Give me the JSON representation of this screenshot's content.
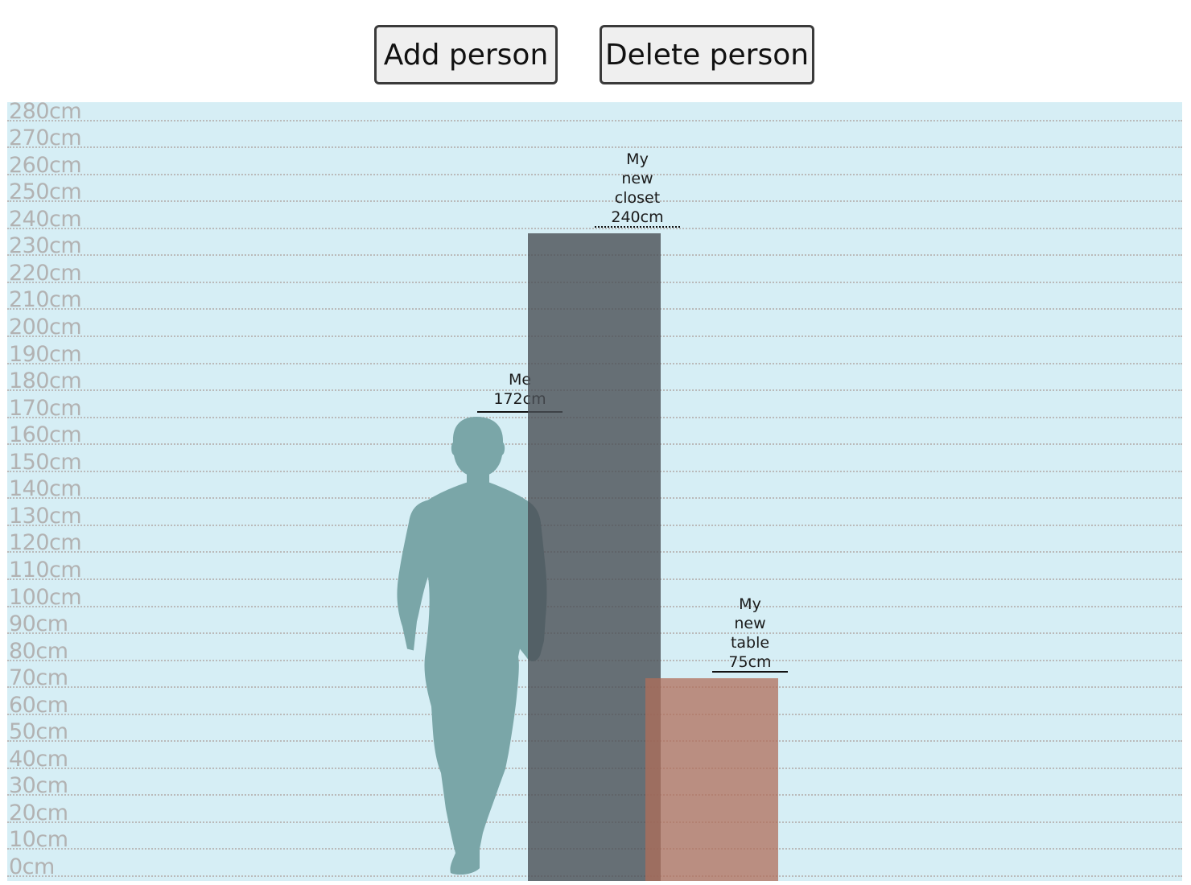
{
  "toolbar": {
    "add_label": "Add person",
    "delete_label": "Delete person"
  },
  "chart_data": {
    "type": "bar",
    "ylim": [
      0,
      280
    ],
    "unit": "cm",
    "tick_step": 10,
    "ticks": [
      "280cm",
      "270cm",
      "260cm",
      "250cm",
      "240cm",
      "230cm",
      "220cm",
      "210cm",
      "200cm",
      "190cm",
      "180cm",
      "170cm",
      "160cm",
      "150cm",
      "140cm",
      "130cm",
      "120cm",
      "110cm",
      "100cm",
      "90cm",
      "80cm",
      "70cm",
      "60cm",
      "50cm",
      "40cm",
      "30cm",
      "20cm",
      "10cm",
      "0cm"
    ],
    "grid": true,
    "background_color": "#d6eef5",
    "objects": [
      {
        "id": "me",
        "kind": "person-silhouette",
        "name": "Me",
        "value": 172,
        "value_label": "172cm",
        "color": "#7aa6a8"
      },
      {
        "id": "closet",
        "kind": "box",
        "name_lines": [
          "My",
          "new",
          "closet"
        ],
        "value": 240,
        "value_label": "240cm",
        "color": "#4a4f55"
      },
      {
        "id": "table",
        "kind": "box",
        "name_lines": [
          "My",
          "new",
          "table"
        ],
        "value": 75,
        "value_label": "75cm",
        "color": "#b06d5a"
      }
    ]
  }
}
